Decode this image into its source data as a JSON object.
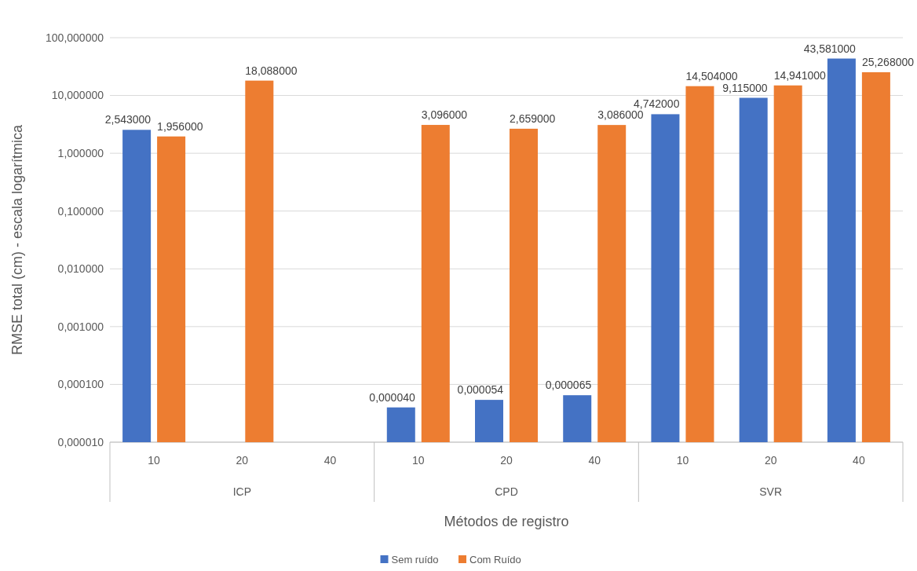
{
  "chart_data": {
    "type": "bar",
    "xlabel": "Métodos de registro",
    "ylabel": "RMSE total (cm)  - escala logarítmica",
    "categories": [
      "10",
      "20",
      "40",
      "10",
      "20",
      "40",
      "10",
      "20",
      "40"
    ],
    "annotations": [
      "ICP",
      "CPD",
      "SVR"
    ],
    "series": [
      {
        "name": "Sem ruído",
        "color": "#4472c4",
        "values": [
          2.543,
          null,
          null,
          4e-05,
          5.4e-05,
          6.5e-05,
          4.742,
          9.115,
          43.581
        ],
        "value_labels": [
          "2,543000",
          null,
          null,
          "0,000040",
          "0,000054",
          "0,000065",
          "4,742000",
          "9,115000",
          "43,581000"
        ]
      },
      {
        "name": "Com Ruído",
        "color": "#ed7d31",
        "values": [
          1.956,
          18.088,
          null,
          3.096,
          2.659,
          3.086,
          14.504,
          14.941,
          25.268
        ],
        "value_labels": [
          "1,956000",
          "18,088000",
          null,
          "3,096000",
          "2,659000",
          "3,086000",
          "14,504000",
          "14,941000",
          "25,268000"
        ]
      }
    ],
    "log": true,
    "ylim": [
      1e-05,
      100
    ],
    "yticks": [
      {
        "value": 1e-05,
        "label": "0,000010"
      },
      {
        "value": 0.0001,
        "label": "0,000100"
      },
      {
        "value": 0.001,
        "label": "0,001000"
      },
      {
        "value": 0.01,
        "label": "0,010000"
      },
      {
        "value": 0.1,
        "label": "0,100000"
      },
      {
        "value": 1,
        "label": "1,000000"
      },
      {
        "value": 10,
        "label": "10,000000"
      },
      {
        "value": 100,
        "label": "100,000000"
      }
    ],
    "grid": "y",
    "legend": "bottom"
  }
}
